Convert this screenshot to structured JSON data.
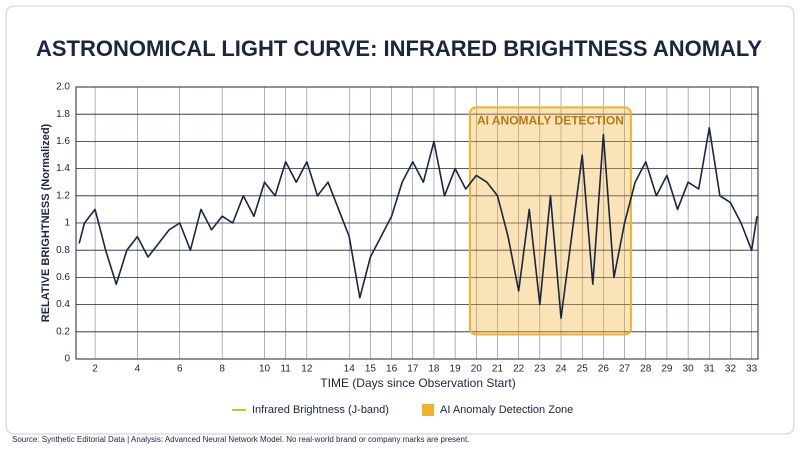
{
  "chart_data": {
    "type": "line",
    "title": "ASTRONOMICAL LIGHT CURVE: INFRARED BRIGHTNESS ANOMALY",
    "x_label": "TIME (Days since Observation Start)",
    "y_label": "RELATIVE BRIGHTNESS (Normalized)",
    "x": [
      1.25,
      1.5,
      2,
      2.5,
      3,
      3.5,
      4,
      4.5,
      5,
      5.5,
      6,
      6.5,
      7,
      7.5,
      8,
      8.5,
      9,
      9.5,
      10,
      10.5,
      11,
      11.5,
      12,
      12.5,
      13,
      13.5,
      14,
      14.5,
      15,
      15.5,
      16,
      16.5,
      17,
      17.5,
      18,
      18.5,
      19,
      19.5,
      20,
      20.5,
      21,
      21.5,
      22,
      22.5,
      23,
      23.5,
      24,
      24.5,
      25,
      25.5,
      26,
      26.5,
      27,
      27.5,
      28,
      28.5,
      29,
      29.5,
      30,
      30.5,
      31,
      31.5,
      32,
      32.5,
      33,
      33.25
    ],
    "series": [
      {
        "name": "Infrared Brightness (J-band)",
        "color": "#1c2540",
        "values": [
          0.85,
          1.0,
          1.1,
          0.8,
          0.55,
          0.8,
          0.9,
          0.75,
          0.85,
          0.95,
          1.0,
          0.8,
          1.1,
          0.95,
          1.05,
          1.0,
          1.2,
          1.05,
          1.3,
          1.2,
          1.45,
          1.3,
          1.45,
          1.2,
          1.3,
          1.1,
          0.9,
          0.45,
          0.75,
          0.9,
          1.05,
          1.3,
          1.45,
          1.3,
          1.6,
          1.2,
          1.4,
          1.25,
          1.35,
          1.3,
          1.2,
          0.9,
          0.5,
          1.1,
          0.4,
          1.2,
          0.3,
          0.9,
          1.5,
          0.55,
          1.65,
          0.6,
          1.0,
          1.3,
          1.45,
          1.2,
          1.35,
          1.1,
          1.3,
          1.25,
          1.7,
          1.2,
          1.15,
          1.0,
          0.8,
          1.05
        ]
      }
    ],
    "zone": {
      "label": "AI ANOMALY DETECTION",
      "name": "AI Anomaly Detection Zone",
      "color": "#f0b030",
      "xlim": [
        19.7,
        27.3
      ],
      "ylim": [
        0.18,
        1.85
      ]
    },
    "xlim": [
      1.1,
      33.3
    ],
    "ylim": [
      0,
      2
    ],
    "xticks": [
      2,
      4,
      6,
      8,
      10,
      11,
      12,
      14,
      15,
      16,
      17,
      18,
      19,
      20,
      21,
      22,
      23,
      24,
      25,
      26,
      27,
      28,
      29,
      30,
      31,
      32,
      33
    ],
    "yticks": [
      0,
      0.2,
      0.4,
      0.6,
      0.8,
      1,
      1.2,
      1.4,
      1.6,
      1.8,
      {
        "value": 2,
        "label": "2.0"
      }
    ],
    "grid": true,
    "source": "Source: Synthetic Editorial Data | Analysis: Advanced Neural Network Model. No real-world brand or company marks are present."
  }
}
